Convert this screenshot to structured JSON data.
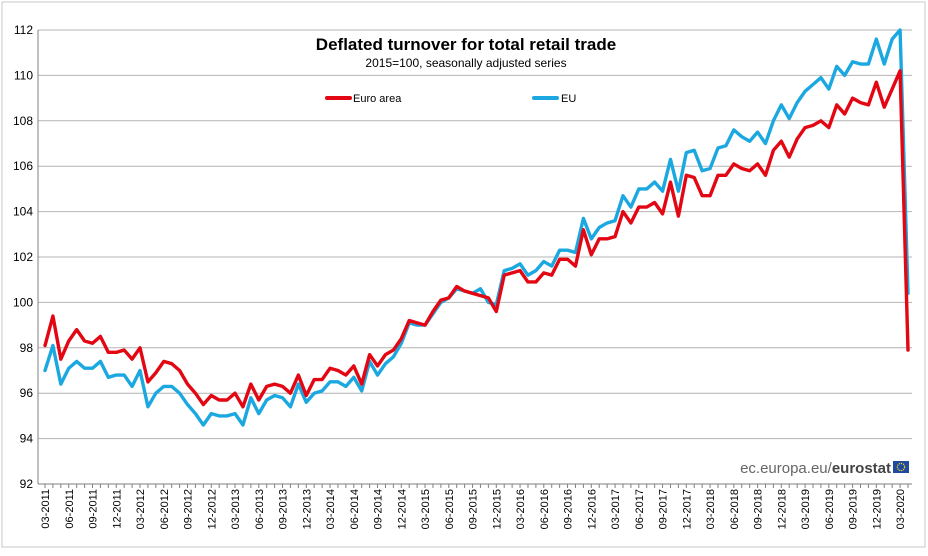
{
  "chart_data": {
    "type": "line",
    "title": "Deflated turnover for total retail trade",
    "subtitle": "2015=100,  seasonally adjusted series",
    "xlabel": "",
    "ylabel": "",
    "ylim": [
      92,
      112
    ],
    "yticks": [
      92,
      94,
      96,
      98,
      100,
      102,
      104,
      106,
      108,
      110,
      112
    ],
    "grid": "horizontal",
    "legend_position": "top-center",
    "x_tick_labels": [
      "03-2011",
      "06-2011",
      "09-2011",
      "12-2011",
      "03-2012",
      "06-2012",
      "09-2012",
      "12-2012",
      "03-2013",
      "06-2013",
      "09-2013",
      "12-2013",
      "03-2014",
      "06-2014",
      "09-2014",
      "12-2014",
      "03-2015",
      "06-2015",
      "09-2015",
      "12-2015",
      "03-2016",
      "06-2016",
      "09-2016",
      "12-2016",
      "03-2017",
      "06-2017",
      "09-2017",
      "12-2017",
      "03-2018",
      "06-2018",
      "09-2018",
      "12-2018",
      "03-2019",
      "06-2019",
      "09-2019",
      "12-2019",
      "03-2020"
    ],
    "x_start": "03-2011",
    "x_end": "03-2020",
    "series": [
      {
        "name": "Euro area",
        "color": "#e30613",
        "values": [
          98.1,
          99.4,
          97.5,
          98.3,
          98.8,
          98.3,
          98.2,
          98.5,
          97.8,
          97.8,
          97.9,
          97.5,
          98.0,
          96.5,
          96.9,
          97.4,
          97.3,
          97.0,
          96.4,
          96.0,
          95.5,
          95.9,
          95.7,
          95.7,
          96.0,
          95.4,
          96.4,
          95.7,
          96.3,
          96.4,
          96.3,
          96.0,
          96.8,
          95.9,
          96.6,
          96.6,
          97.1,
          97.0,
          96.8,
          97.2,
          96.4,
          97.7,
          97.2,
          97.7,
          97.9,
          98.4,
          99.2,
          99.1,
          99.0,
          99.6,
          100.1,
          100.2,
          100.7,
          100.5,
          100.4,
          100.3,
          100.2,
          99.6,
          101.2,
          101.3,
          101.4,
          100.9,
          100.9,
          101.3,
          101.2,
          101.9,
          101.9,
          101.6,
          103.2,
          102.1,
          102.8,
          102.8,
          102.9,
          104.0,
          103.5,
          104.2,
          104.2,
          104.4,
          103.9,
          105.3,
          103.8,
          105.6,
          105.5,
          104.7,
          104.7,
          105.6,
          105.6,
          106.1,
          105.9,
          105.8,
          106.1,
          105.6,
          106.7,
          107.1,
          106.4,
          107.2,
          107.7,
          107.8,
          108.0,
          107.7,
          108.7,
          108.3,
          109.0,
          108.8,
          108.7,
          109.7,
          108.6,
          109.4,
          110.2,
          97.9
        ]
      },
      {
        "name": "EU",
        "color": "#1ba8e0",
        "values": [
          97.0,
          98.1,
          96.4,
          97.1,
          97.4,
          97.1,
          97.1,
          97.4,
          96.7,
          96.8,
          96.8,
          96.3,
          97.0,
          95.4,
          96.0,
          96.3,
          96.3,
          96.0,
          95.5,
          95.1,
          94.6,
          95.1,
          95.0,
          95.0,
          95.1,
          94.6,
          95.8,
          95.1,
          95.7,
          95.9,
          95.8,
          95.4,
          96.4,
          95.6,
          96.0,
          96.1,
          96.5,
          96.5,
          96.3,
          96.7,
          96.1,
          97.4,
          96.8,
          97.3,
          97.6,
          98.2,
          99.1,
          99.0,
          99.0,
          99.5,
          100.0,
          100.2,
          100.6,
          100.5,
          100.4,
          100.6,
          100.0,
          99.9,
          101.4,
          101.5,
          101.7,
          101.2,
          101.4,
          101.8,
          101.6,
          102.3,
          102.3,
          102.2,
          103.7,
          102.8,
          103.3,
          103.5,
          103.6,
          104.7,
          104.2,
          105.0,
          105.0,
          105.3,
          104.9,
          106.3,
          104.9,
          106.6,
          106.7,
          105.8,
          105.9,
          106.8,
          106.9,
          107.6,
          107.3,
          107.1,
          107.5,
          107.0,
          108.0,
          108.7,
          108.1,
          108.8,
          109.3,
          109.6,
          109.9,
          109.4,
          110.4,
          110.0,
          110.6,
          110.5,
          110.5,
          111.6,
          110.5,
          111.6,
          112.0,
          100.4
        ]
      }
    ]
  },
  "watermark": {
    "site": "ec.europa.eu/",
    "brand": "eurostat"
  }
}
